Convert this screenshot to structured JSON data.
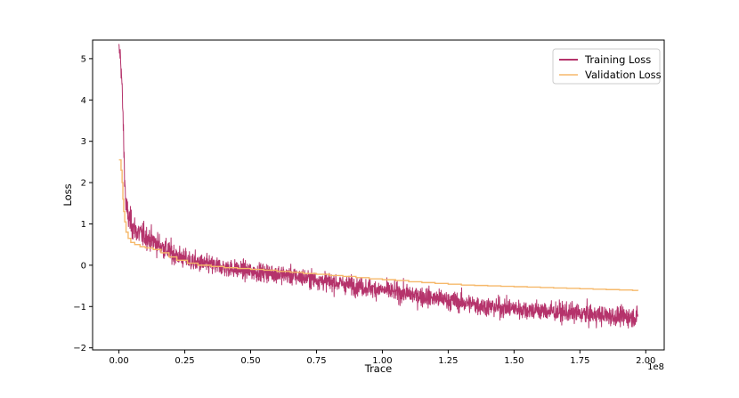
{
  "chart_data": {
    "type": "line",
    "xlabel": "Trace",
    "ylabel": "Loss",
    "x_offset_label": "1e8",
    "xlim": [
      -0.1,
      2.07
    ],
    "ylim": [
      -2.05,
      5.45
    ],
    "x_ticks": [
      0.0,
      0.25,
      0.5,
      0.75,
      1.0,
      1.25,
      1.5,
      1.75,
      2.0
    ],
    "x_tick_labels": [
      "0.00",
      "0.25",
      "0.50",
      "0.75",
      "1.00",
      "1.25",
      "1.50",
      "1.75",
      "2.00"
    ],
    "y_ticks": [
      -2,
      -1,
      0,
      1,
      2,
      3,
      4,
      5
    ],
    "y_tick_labels": [
      "−2",
      "−1",
      "0",
      "1",
      "2",
      "3",
      "4",
      "5"
    ],
    "legend_position": "top-right",
    "grid": false,
    "series": [
      {
        "name": "Training Loss",
        "color": "#b5336b",
        "noisy": true,
        "x": [
          0.0,
          0.005,
          0.01,
          0.015,
          0.02,
          0.025,
          0.03,
          0.04,
          0.05,
          0.07,
          0.1,
          0.15,
          0.2,
          0.25,
          0.3,
          0.4,
          0.5,
          0.6,
          0.7,
          0.8,
          0.9,
          1.0,
          1.1,
          1.2,
          1.3,
          1.4,
          1.5,
          1.6,
          1.7,
          1.8,
          1.9,
          1.97
        ],
        "y": [
          5.2,
          5.1,
          4.6,
          3.7,
          2.5,
          1.6,
          1.3,
          1.1,
          0.95,
          0.8,
          0.7,
          0.5,
          0.3,
          0.15,
          0.05,
          -0.05,
          -0.15,
          -0.2,
          -0.3,
          -0.4,
          -0.5,
          -0.6,
          -0.7,
          -0.8,
          -0.9,
          -1.0,
          -1.05,
          -1.1,
          -1.15,
          -1.2,
          -1.25,
          -1.25
        ],
        "noise_amplitude": [
          0.3,
          0.3,
          0.35,
          0.4,
          0.45,
          0.45,
          0.45,
          0.4,
          0.4,
          0.38,
          0.35,
          0.35,
          0.33,
          0.3,
          0.3,
          0.28,
          0.28,
          0.28,
          0.28,
          0.28,
          0.28,
          0.28,
          0.3,
          0.3,
          0.3,
          0.3,
          0.3,
          0.3,
          0.3,
          0.3,
          0.3,
          0.3
        ]
      },
      {
        "name": "Validation Loss",
        "color": "#f6b96b",
        "step": true,
        "x": [
          0.0,
          0.008,
          0.012,
          0.015,
          0.018,
          0.022,
          0.027,
          0.035,
          0.045,
          0.06,
          0.08,
          0.1,
          0.13,
          0.16,
          0.19,
          0.22,
          0.26,
          0.3,
          0.35,
          0.4,
          0.45,
          0.5,
          0.55,
          0.6,
          0.65,
          0.7,
          0.75,
          0.8,
          0.85,
          0.9,
          0.95,
          1.0,
          1.05,
          1.1,
          1.15,
          1.2,
          1.25,
          1.3,
          1.35,
          1.4,
          1.45,
          1.5,
          1.55,
          1.6,
          1.65,
          1.7,
          1.75,
          1.8,
          1.85,
          1.9,
          1.95,
          1.97
        ],
        "y": [
          2.55,
          2.3,
          2.0,
          1.6,
          1.3,
          1.05,
          0.8,
          0.65,
          0.55,
          0.5,
          0.45,
          0.42,
          0.38,
          0.3,
          0.2,
          0.12,
          0.05,
          0.0,
          -0.03,
          -0.06,
          -0.08,
          -0.1,
          -0.12,
          -0.15,
          -0.17,
          -0.2,
          -0.22,
          -0.25,
          -0.27,
          -0.3,
          -0.33,
          -0.35,
          -0.37,
          -0.4,
          -0.42,
          -0.44,
          -0.46,
          -0.48,
          -0.49,
          -0.5,
          -0.51,
          -0.52,
          -0.53,
          -0.54,
          -0.55,
          -0.56,
          -0.57,
          -0.58,
          -0.59,
          -0.6,
          -0.61,
          -0.62
        ]
      }
    ]
  }
}
